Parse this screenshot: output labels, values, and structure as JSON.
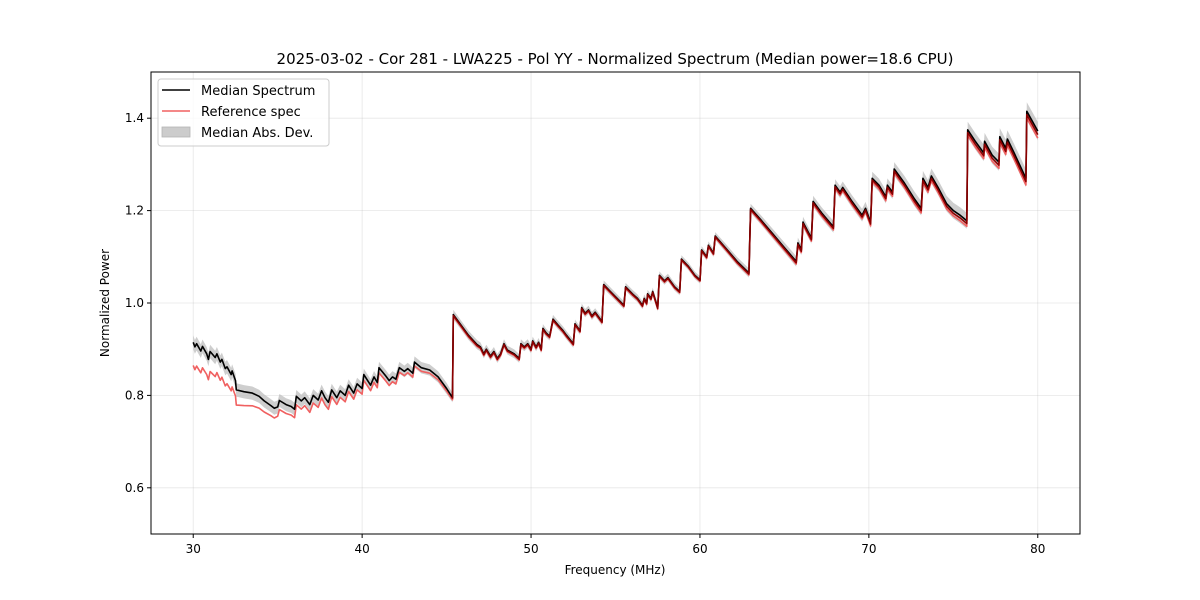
{
  "chart_data": {
    "type": "line",
    "title": "2025-03-02 - Cor 281 - LWA225 - Pol YY - Normalized Spectrum (Median power=18.6 CPU)",
    "xlabel": "Frequency (MHz)",
    "ylabel": "Normalized Power",
    "xlim": [
      27.5,
      82.5
    ],
    "ylim": [
      0.5,
      1.5
    ],
    "xticks": [
      30,
      40,
      50,
      60,
      70,
      80
    ],
    "xtick_labels": [
      "30",
      "40",
      "50",
      "60",
      "70",
      "80"
    ],
    "yticks": [
      0.6,
      0.8,
      1.0,
      1.2,
      1.4
    ],
    "ytick_labels": [
      "0.6",
      "0.8",
      "1.0",
      "1.2",
      "1.4"
    ],
    "grid": true,
    "legend_position": "top-left",
    "legend": [
      {
        "label": "Median Spectrum",
        "kind": "line",
        "color": "#000000"
      },
      {
        "label": "Reference spec",
        "kind": "line",
        "color": "#f06060"
      },
      {
        "label": "Median Abs. Dev.",
        "kind": "band",
        "color": "#bdbdbd"
      }
    ],
    "series": [
      {
        "name": "Median Spectrum",
        "color": "#000000",
        "points": [
          [
            30.0,
            0.915
          ],
          [
            30.1,
            0.905
          ],
          [
            30.2,
            0.912
          ],
          [
            30.45,
            0.896
          ],
          [
            30.55,
            0.906
          ],
          [
            30.8,
            0.89
          ],
          [
            30.9,
            0.878
          ],
          [
            31.0,
            0.895
          ],
          [
            31.3,
            0.882
          ],
          [
            31.4,
            0.89
          ],
          [
            31.6,
            0.872
          ],
          [
            31.7,
            0.878
          ],
          [
            31.9,
            0.858
          ],
          [
            32.0,
            0.862
          ],
          [
            32.25,
            0.845
          ],
          [
            32.3,
            0.853
          ],
          [
            32.5,
            0.832
          ],
          [
            32.55,
            0.812
          ],
          [
            33.0,
            0.808
          ],
          [
            33.5,
            0.805
          ],
          [
            33.9,
            0.798
          ],
          [
            34.2,
            0.788
          ],
          [
            34.6,
            0.778
          ],
          [
            34.8,
            0.772
          ],
          [
            35.0,
            0.775
          ],
          [
            35.1,
            0.789
          ],
          [
            35.5,
            0.78
          ],
          [
            35.8,
            0.776
          ],
          [
            36.0,
            0.77
          ],
          [
            36.1,
            0.798
          ],
          [
            36.4,
            0.788
          ],
          [
            36.6,
            0.795
          ],
          [
            36.9,
            0.78
          ],
          [
            37.1,
            0.8
          ],
          [
            37.4,
            0.79
          ],
          [
            37.6,
            0.81
          ],
          [
            37.8,
            0.795
          ],
          [
            38.0,
            0.785
          ],
          [
            38.2,
            0.812
          ],
          [
            38.5,
            0.795
          ],
          [
            38.7,
            0.81
          ],
          [
            39.0,
            0.8
          ],
          [
            39.2,
            0.822
          ],
          [
            39.5,
            0.805
          ],
          [
            39.7,
            0.825
          ],
          [
            40.0,
            0.815
          ],
          [
            40.1,
            0.845
          ],
          [
            40.5,
            0.822
          ],
          [
            40.7,
            0.84
          ],
          [
            40.9,
            0.828
          ],
          [
            41.0,
            0.86
          ],
          [
            41.4,
            0.842
          ],
          [
            41.6,
            0.832
          ],
          [
            41.8,
            0.84
          ],
          [
            42.0,
            0.835
          ],
          [
            42.2,
            0.86
          ],
          [
            42.5,
            0.852
          ],
          [
            42.7,
            0.858
          ],
          [
            43.0,
            0.848
          ],
          [
            43.1,
            0.872
          ],
          [
            43.5,
            0.86
          ],
          [
            44.0,
            0.855
          ],
          [
            44.5,
            0.84
          ],
          [
            45.0,
            0.815
          ],
          [
            45.35,
            0.795
          ],
          [
            45.4,
            0.975
          ],
          [
            45.8,
            0.955
          ],
          [
            46.3,
            0.93
          ],
          [
            46.8,
            0.91
          ],
          [
            47.0,
            0.905
          ],
          [
            47.2,
            0.89
          ],
          [
            47.35,
            0.9
          ],
          [
            47.6,
            0.885
          ],
          [
            47.8,
            0.895
          ],
          [
            48.0,
            0.88
          ],
          [
            48.2,
            0.89
          ],
          [
            48.4,
            0.912
          ],
          [
            48.6,
            0.898
          ],
          [
            49.0,
            0.89
          ],
          [
            49.3,
            0.88
          ],
          [
            49.4,
            0.912
          ],
          [
            49.6,
            0.905
          ],
          [
            49.8,
            0.912
          ],
          [
            50.0,
            0.9
          ],
          [
            50.1,
            0.918
          ],
          [
            50.3,
            0.905
          ],
          [
            50.45,
            0.915
          ],
          [
            50.6,
            0.9
          ],
          [
            50.7,
            0.945
          ],
          [
            50.9,
            0.935
          ],
          [
            51.1,
            0.928
          ],
          [
            51.3,
            0.965
          ],
          [
            51.6,
            0.952
          ],
          [
            51.9,
            0.94
          ],
          [
            52.1,
            0.93
          ],
          [
            52.5,
            0.912
          ],
          [
            52.6,
            0.955
          ],
          [
            52.9,
            0.94
          ],
          [
            53.0,
            0.99
          ],
          [
            53.2,
            0.978
          ],
          [
            53.4,
            0.985
          ],
          [
            53.6,
            0.972
          ],
          [
            53.8,
            0.98
          ],
          [
            54.1,
            0.965
          ],
          [
            54.2,
            0.96
          ],
          [
            54.3,
            1.04
          ],
          [
            54.7,
            1.025
          ],
          [
            55.1,
            1.01
          ],
          [
            55.5,
            0.995
          ],
          [
            55.6,
            1.035
          ],
          [
            56.0,
            1.02
          ],
          [
            56.3,
            1.01
          ],
          [
            56.6,
            0.995
          ],
          [
            56.7,
            1.01
          ],
          [
            56.85,
            1.0
          ],
          [
            56.9,
            1.02
          ],
          [
            57.1,
            1.01
          ],
          [
            57.2,
            1.025
          ],
          [
            57.5,
            0.99
          ],
          [
            57.6,
            1.06
          ],
          [
            57.9,
            1.048
          ],
          [
            58.1,
            1.055
          ],
          [
            58.5,
            1.035
          ],
          [
            58.8,
            1.025
          ],
          [
            58.9,
            1.095
          ],
          [
            59.3,
            1.08
          ],
          [
            59.7,
            1.06
          ],
          [
            60.0,
            1.05
          ],
          [
            60.1,
            1.115
          ],
          [
            60.4,
            1.1
          ],
          [
            60.5,
            1.125
          ],
          [
            60.8,
            1.108
          ],
          [
            60.9,
            1.145
          ],
          [
            61.5,
            1.12
          ],
          [
            62.2,
            1.09
          ],
          [
            62.9,
            1.065
          ],
          [
            63.0,
            1.205
          ],
          [
            63.6,
            1.18
          ],
          [
            64.3,
            1.15
          ],
          [
            65.0,
            1.12
          ],
          [
            65.7,
            1.09
          ],
          [
            65.8,
            1.13
          ],
          [
            66.0,
            1.115
          ],
          [
            66.1,
            1.175
          ],
          [
            66.6,
            1.14
          ],
          [
            66.7,
            1.22
          ],
          [
            67.2,
            1.195
          ],
          [
            67.9,
            1.165
          ],
          [
            68.0,
            1.255
          ],
          [
            68.3,
            1.24
          ],
          [
            68.45,
            1.25
          ],
          [
            69.0,
            1.22
          ],
          [
            69.6,
            1.19
          ],
          [
            69.8,
            1.205
          ],
          [
            70.1,
            1.175
          ],
          [
            70.2,
            1.27
          ],
          [
            70.6,
            1.255
          ],
          [
            71.0,
            1.23
          ],
          [
            71.1,
            1.255
          ],
          [
            71.4,
            1.24
          ],
          [
            71.5,
            1.29
          ],
          [
            72.1,
            1.26
          ],
          [
            72.7,
            1.225
          ],
          [
            73.1,
            1.205
          ],
          [
            73.2,
            1.27
          ],
          [
            73.5,
            1.25
          ],
          [
            73.7,
            1.275
          ],
          [
            74.1,
            1.25
          ],
          [
            74.6,
            1.215
          ],
          [
            75.0,
            1.2
          ],
          [
            75.4,
            1.19
          ],
          [
            75.8,
            1.178
          ],
          [
            75.85,
            1.375
          ],
          [
            76.3,
            1.35
          ],
          [
            76.8,
            1.325
          ],
          [
            76.85,
            1.35
          ],
          [
            77.3,
            1.32
          ],
          [
            77.7,
            1.305
          ],
          [
            77.75,
            1.36
          ],
          [
            78.1,
            1.335
          ],
          [
            78.2,
            1.355
          ],
          [
            78.6,
            1.325
          ],
          [
            79.3,
            1.27
          ],
          [
            79.35,
            1.415
          ],
          [
            80.0,
            1.372
          ]
        ]
      },
      {
        "name": "Reference spec",
        "color": "#f06060",
        "offsets": [
          [
            30.0,
            -0.05
          ],
          [
            33.0,
            -0.03
          ],
          [
            35.0,
            -0.02
          ],
          [
            38.0,
            -0.015
          ],
          [
            42.0,
            -0.01
          ],
          [
            45.3,
            -0.005
          ],
          [
            45.4,
            -0.004
          ],
          [
            60.0,
            -0.003
          ],
          [
            70.0,
            -0.008
          ],
          [
            80.0,
            -0.015
          ]
        ]
      },
      {
        "name": "Median Abs. Dev.",
        "color": "#bdbdbd",
        "halfwidth": [
          [
            30.0,
            0.015
          ],
          [
            45.0,
            0.012
          ],
          [
            45.4,
            0.01
          ],
          [
            60.0,
            0.008
          ],
          [
            70.0,
            0.014
          ],
          [
            80.0,
            0.02
          ]
        ]
      }
    ]
  }
}
